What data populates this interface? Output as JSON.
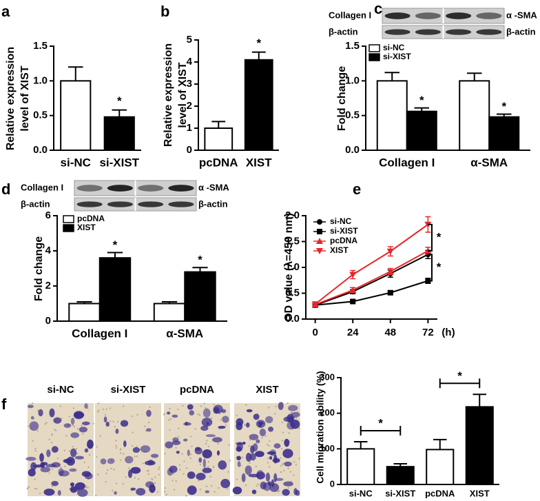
{
  "chart_data": [
    {
      "type": "bar",
      "panel": "a",
      "ylabel": [
        "Relative expression",
        "level of XIST"
      ],
      "categories": [
        "si-NC",
        "si-XIST"
      ],
      "values": [
        1.0,
        0.48
      ],
      "errors": [
        0.2,
        0.1
      ],
      "colors": [
        "#ffffff",
        "#000000"
      ],
      "ylim": [
        0,
        1.5
      ],
      "yticks": [
        {
          "value": 0,
          "label": "0.0"
        },
        0.5,
        {
          "value": 1,
          "label": "1.0"
        },
        1.5
      ],
      "annotations": [
        "*"
      ]
    },
    {
      "type": "bar",
      "panel": "b",
      "ylabel": [
        "Relative expression",
        "level of XIST"
      ],
      "categories": [
        "pcDNA",
        "XIST"
      ],
      "values": [
        1.0,
        4.1
      ],
      "errors": [
        0.3,
        0.35
      ],
      "colors": [
        "#ffffff",
        "#000000"
      ],
      "ylim": [
        0,
        5
      ],
      "yticks": [
        0,
        1,
        2,
        3,
        4,
        5
      ],
      "annotations": [
        "*"
      ]
    },
    {
      "type": "bar",
      "panel": "c",
      "blot_labels": [
        "Collagen I",
        "α -SMA",
        "β-actin",
        "β-actin"
      ],
      "ylabel": [
        "Fold change"
      ],
      "categories": [
        "Collagen I",
        "α-SMA"
      ],
      "series": [
        {
          "name": "si-NC",
          "color": "#ffffff",
          "values": [
            1.0,
            1.0
          ],
          "errors": [
            0.12,
            0.11
          ]
        },
        {
          "name": "si-XIST",
          "color": "#000000",
          "values": [
            0.56,
            0.48
          ],
          "errors": [
            0.05,
            0.04
          ]
        }
      ],
      "ylim": [
        0,
        1.5
      ],
      "yticks": [
        {
          "value": 0,
          "label": "0.0"
        },
        0.5,
        {
          "value": 1,
          "label": "1.0"
        },
        1.5
      ],
      "annotations": [
        "*",
        "*"
      ]
    },
    {
      "type": "bar",
      "panel": "d",
      "blot_labels": [
        "Collagen I",
        "α -SMA",
        "β-actin",
        "β-actin"
      ],
      "ylabel": [
        "Fold change"
      ],
      "categories": [
        "Collagen I",
        "α-SMA"
      ],
      "series": [
        {
          "name": "pcDNA",
          "color": "#ffffff",
          "values": [
            1.0,
            1.0
          ],
          "errors": [
            0.1,
            0.1
          ]
        },
        {
          "name": "XIST",
          "color": "#000000",
          "values": [
            3.6,
            2.8
          ],
          "errors": [
            0.3,
            0.25
          ]
        }
      ],
      "ylim": [
        0,
        6
      ],
      "yticks": [
        0,
        2,
        4,
        6
      ],
      "annotations": [
        "*",
        "*"
      ]
    },
    {
      "type": "line",
      "panel": "e",
      "ylabel": [
        "OD value (λ=450 nm)"
      ],
      "xlabel": "(h)",
      "x": [
        0,
        24,
        48,
        72
      ],
      "xlim": [
        -6,
        78
      ],
      "xticks": [
        0,
        24,
        48,
        72
      ],
      "series": [
        {
          "name": "si-NC",
          "color": "#000000",
          "marker": "circle",
          "values": [
            0.27,
            0.53,
            0.88,
            1.25
          ],
          "errors": [
            0.02,
            0.04,
            0.07,
            0.08
          ]
        },
        {
          "name": "si-XIST",
          "color": "#000000",
          "marker": "square",
          "values": [
            0.27,
            0.34,
            0.51,
            0.74
          ],
          "errors": [
            0.02,
            0.03,
            0.04,
            0.05
          ]
        },
        {
          "name": "pcDNA",
          "color": "#e8262a",
          "marker": "triangle",
          "values": [
            0.28,
            0.56,
            0.92,
            1.32
          ],
          "errors": [
            0.02,
            0.05,
            0.06,
            0.07
          ]
        },
        {
          "name": "XIST",
          "color": "#e8262a",
          "marker": "triangle-down",
          "values": [
            0.29,
            0.86,
            1.31,
            1.83
          ],
          "errors": [
            0.02,
            0.08,
            0.09,
            0.15
          ]
        }
      ],
      "ylim": [
        0,
        2
      ],
      "yticks": [
        {
          "value": 0,
          "label": "0.0"
        },
        0.5,
        {
          "value": 1,
          "label": "1.0"
        },
        1.5,
        {
          "value": 2,
          "label": "2.0"
        }
      ],
      "annotations": [
        "*",
        "*"
      ]
    },
    {
      "type": "bar",
      "panel": "f",
      "ylabel": [
        "Cell migration ability (%)"
      ],
      "categories": [
        "si-NC",
        "si-XIST",
        "pcDNA",
        "XIST"
      ],
      "values": [
        100,
        50,
        98,
        218
      ],
      "errors": [
        20,
        8,
        28,
        35
      ],
      "colors": [
        "#ffffff",
        "#000000",
        "#ffffff",
        "#000000"
      ],
      "ylim": [
        0,
        300
      ],
      "yticks": [
        0,
        100,
        200,
        300
      ],
      "annotations": [
        "*",
        "*"
      ]
    }
  ],
  "images": {
    "labels": [
      "si-NC",
      "si-XIST",
      "pcDNA",
      "XIST"
    ]
  }
}
